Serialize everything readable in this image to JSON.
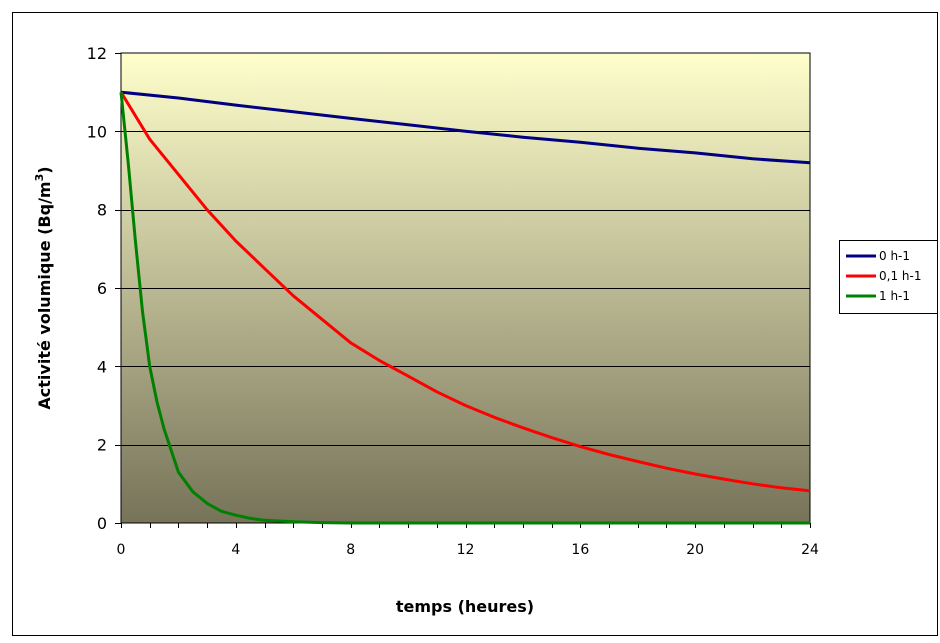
{
  "chart_data": {
    "type": "line",
    "xlabel": "temps (heures)",
    "ylabel": "Activité volumique (Bq/m3)",
    "ylabel_parts": {
      "main": "Activité volumique (Bq/m",
      "sup": "3",
      "end": ")"
    },
    "xlim": [
      0,
      24
    ],
    "ylim": [
      0,
      12
    ],
    "x_ticks": [
      0,
      4,
      8,
      12,
      16,
      20,
      24
    ],
    "y_ticks": [
      0,
      2,
      4,
      6,
      8,
      10,
      12
    ],
    "grid": "horizontal",
    "legend_position": "right",
    "background": {
      "top": "#ffffcc",
      "bottom": "#767359"
    },
    "series": [
      {
        "name": "0 h-1",
        "color": "#000080",
        "points": [
          [
            0,
            11
          ],
          [
            2,
            10.85
          ],
          [
            4,
            10.67
          ],
          [
            6,
            10.5
          ],
          [
            8,
            10.33
          ],
          [
            10,
            10.17
          ],
          [
            12,
            10.0
          ],
          [
            14,
            9.85
          ],
          [
            16,
            9.72
          ],
          [
            18,
            9.57
          ],
          [
            20,
            9.45
          ],
          [
            22,
            9.3
          ],
          [
            24,
            9.2
          ]
        ]
      },
      {
        "name": "0,1 h-1",
        "color": "#ff0000",
        "points": [
          [
            0,
            11
          ],
          [
            1,
            9.8
          ],
          [
            2,
            8.9
          ],
          [
            3,
            8.0
          ],
          [
            4,
            7.2
          ],
          [
            5,
            6.5
          ],
          [
            6,
            5.8
          ],
          [
            7,
            5.2
          ],
          [
            8,
            4.6
          ],
          [
            9,
            4.15
          ],
          [
            10,
            3.75
          ],
          [
            11,
            3.35
          ],
          [
            12,
            3.0
          ],
          [
            13,
            2.7
          ],
          [
            14,
            2.43
          ],
          [
            15,
            2.18
          ],
          [
            16,
            1.95
          ],
          [
            17,
            1.75
          ],
          [
            18,
            1.57
          ],
          [
            19,
            1.4
          ],
          [
            20,
            1.25
          ],
          [
            21,
            1.12
          ],
          [
            22,
            1.0
          ],
          [
            23,
            0.9
          ],
          [
            24,
            0.82
          ]
        ]
      },
      {
        "name": "1 h-1",
        "color": "#008000",
        "points": [
          [
            0,
            11
          ],
          [
            0.25,
            9.2
          ],
          [
            0.5,
            7.2
          ],
          [
            0.75,
            5.4
          ],
          [
            1,
            4.0
          ],
          [
            1.25,
            3.1
          ],
          [
            1.5,
            2.4
          ],
          [
            2,
            1.3
          ],
          [
            2.5,
            0.8
          ],
          [
            3,
            0.5
          ],
          [
            3.5,
            0.3
          ],
          [
            4,
            0.2
          ],
          [
            4.5,
            0.12
          ],
          [
            5,
            0.07
          ],
          [
            6,
            0.03
          ],
          [
            7,
            0.01
          ],
          [
            8,
            0
          ],
          [
            12,
            0
          ],
          [
            16,
            0
          ],
          [
            20,
            0
          ],
          [
            24,
            0
          ]
        ]
      }
    ]
  }
}
